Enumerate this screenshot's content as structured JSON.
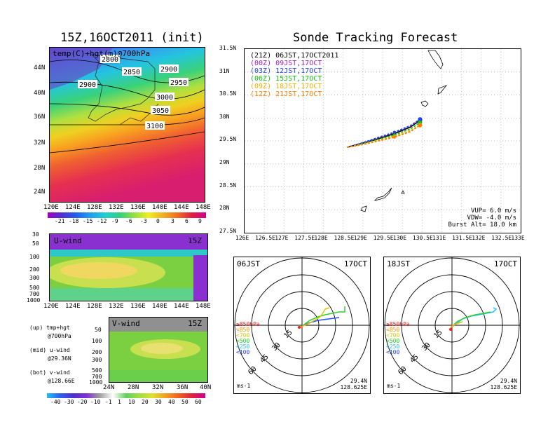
{
  "left_title": "15Z,16OCT2011 (init)",
  "right_title": "Sonde Tracking Forecast",
  "top_panel": {
    "label": "temp(C)+hgt(m)@700hPa",
    "lat_ticks": [
      "44N",
      "40N",
      "36N",
      "32N",
      "28N",
      "24N"
    ],
    "lon_ticks": [
      "120E",
      "124E",
      "128E",
      "132E",
      "136E",
      "140E",
      "144E",
      "148E"
    ],
    "contour_labels": [
      "2800",
      "2850",
      "2900",
      "2900",
      "2950",
      "3000",
      "3050",
      "3100"
    ],
    "colorbar_labels": [
      "-21",
      "-18",
      "-15",
      "-12",
      "-9",
      "-6",
      "-3",
      "0",
      "3",
      "6",
      "9"
    ]
  },
  "uwind_panel": {
    "label": "U-wind",
    "time": "15Z",
    "p_ticks": [
      "30",
      "50",
      "100",
      "200",
      "300",
      "500",
      "700",
      "1000"
    ],
    "lon_ticks": [
      "120E",
      "124E",
      "128E",
      "132E",
      "136E",
      "140E",
      "144E",
      "148E"
    ]
  },
  "vwind_panel": {
    "label": "V-wind",
    "time": "15Z",
    "p_ticks": [
      "50",
      "100",
      "200",
      "300",
      "500",
      "700",
      "1000"
    ],
    "lat_ticks": [
      "24N",
      "28N",
      "32N",
      "36N",
      "40N"
    ]
  },
  "legend_text": {
    "up1": "(up) tmp+hgt",
    "up2": "@700hPa",
    "mid1": "(mid) u-wind",
    "mid2": "@29.36N",
    "bot1": "(bot) v-wind",
    "bot2": "@128.66E"
  },
  "wind_colorbar_labels": [
    "-40",
    "-30",
    "-20",
    "-10",
    "-1",
    "1",
    "10",
    "20",
    "30",
    "40",
    "50",
    "60"
  ],
  "track_panel": {
    "lat_ticks": [
      "31.5N",
      "31N",
      "30.5N",
      "30N",
      "29.5N",
      "29N",
      "28.5N",
      "28N",
      "27.5N"
    ],
    "lon_ticks": [
      "126E",
      "126.5E",
      "127E",
      "127.5E",
      "128E",
      "128.5E",
      "129E",
      "129.5E",
      "130E",
      "130.5E",
      "131E",
      "131.5E",
      "132E",
      "132.5E",
      "133E"
    ],
    "legend": [
      {
        "z": "(21Z)",
        "t": "06JST,17OCT2011",
        "color": "#000000"
      },
      {
        "z": "(00Z)",
        "t": "09JST,17OCT",
        "color": "#a020c0"
      },
      {
        "z": "(03Z)",
        "t": "12JST,17OCT",
        "color": "#2040ff"
      },
      {
        "z": "(06Z)",
        "t": "15JST,17OCT",
        "color": "#10c010"
      },
      {
        "z": "(09Z)",
        "t": "18JST,17OCT",
        "color": "#f0b000"
      },
      {
        "z": "(12Z)",
        "t": "21JST,17OCT",
        "color": "#ff8000"
      }
    ],
    "params": {
      "vup": "VUP=  6.0 m/s",
      "vdw": "VDW= -4.0 m/s",
      "burst": "Burst Alt= 18.0 km"
    }
  },
  "chart_data": [
    {
      "type": "line",
      "title": "Sonde Tracking Forecast",
      "xlim": [
        126,
        133
      ],
      "ylim": [
        27.5,
        31.5
      ],
      "series": [
        {
          "name": "(21Z) 06JST,17OCT2011",
          "x": [
            128.6,
            129.0,
            129.4,
            129.8,
            130.2,
            130.45
          ],
          "y": [
            29.36,
            29.45,
            29.55,
            29.66,
            29.8,
            29.95
          ]
        },
        {
          "name": "(00Z) 09JST,17OCT",
          "x": [
            128.6,
            129.0,
            129.4,
            129.8,
            130.2,
            130.45
          ],
          "y": [
            29.36,
            29.46,
            29.57,
            29.68,
            29.82,
            29.97
          ]
        },
        {
          "name": "(03Z) 12JST,17OCT",
          "x": [
            128.6,
            129.0,
            129.4,
            129.8,
            130.2,
            130.45
          ],
          "y": [
            29.36,
            29.46,
            29.58,
            29.69,
            29.83,
            29.97
          ]
        },
        {
          "name": "(06Z) 15JST,17OCT",
          "x": [
            128.6,
            129.0,
            129.4,
            129.8,
            130.2,
            130.45
          ],
          "y": [
            29.36,
            29.44,
            29.53,
            29.63,
            29.76,
            29.9
          ]
        },
        {
          "name": "(09Z) 18JST,17OCT",
          "x": [
            128.6,
            129.0,
            129.4,
            129.8,
            130.2,
            130.45
          ],
          "y": [
            29.36,
            29.43,
            29.51,
            29.6,
            29.72,
            29.85
          ]
        },
        {
          "name": "(12Z) 21JST,17OCT",
          "x": [
            128.6,
            129.0,
            129.4,
            129.8,
            130.2,
            130.45
          ],
          "y": [
            29.36,
            29.42,
            29.5,
            29.58,
            29.7,
            29.84
          ]
        }
      ]
    }
  ],
  "hodo_left": {
    "time": "06JST",
    "date": "17OCT",
    "lat": "29.4N",
    "lon": "128.625E",
    "unit": "ms-1",
    "rings": [
      "15",
      "30",
      "45",
      "60"
    ]
  },
  "hodo_right": {
    "time": "18JST",
    "date": "17OCT",
    "lat": "29.4N",
    "lon": "128.625E",
    "unit": "ms-1",
    "rings": [
      "15",
      "30",
      "45",
      "60"
    ]
  },
  "hodo_levels": [
    {
      "label": "≥850hPa",
      "color": "#ff2020"
    },
    {
      "label": "<850",
      "color": "#ff9000"
    },
    {
      "label": "<700",
      "color": "#e0e000"
    },
    {
      "label": "<500",
      "color": "#20d020"
    },
    {
      "label": "<250",
      "color": "#20c0ff"
    },
    {
      "label": "<100",
      "color": "#2040ff"
    }
  ]
}
